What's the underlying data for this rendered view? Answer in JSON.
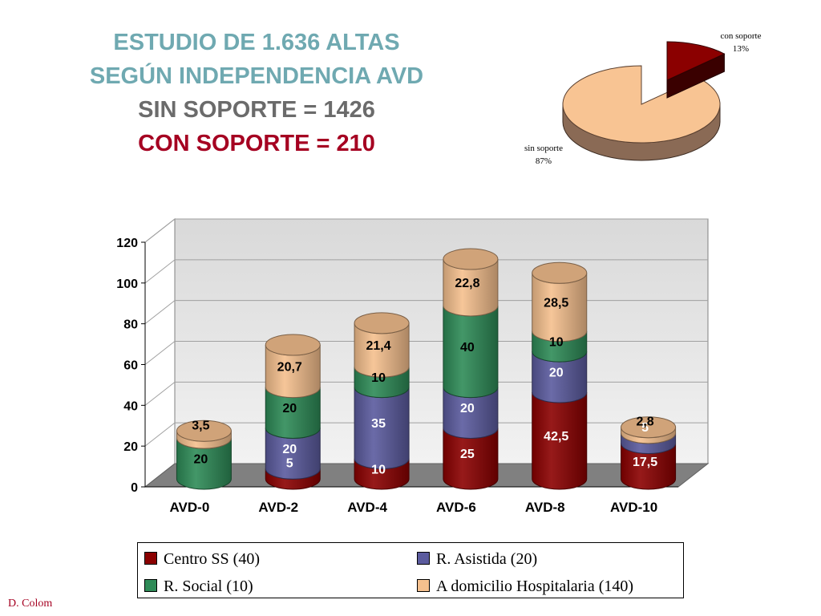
{
  "title": {
    "line1": "ESTUDIO DE 1.636 ALTAS",
    "line2": "SEGÚN INDEPENDENCIA  AVD",
    "line3": "SIN SOPORTE  = 1426",
    "line4": "CON SOPORTE =   210"
  },
  "author": "D. Colom",
  "chart_data": [
    {
      "type": "bar",
      "stacked": true,
      "categories": [
        "AVD-0",
        "AVD-2",
        "AVD-4",
        "AVD-6",
        "AVD-8",
        "AVD-10"
      ],
      "ylim": [
        0,
        120
      ],
      "yticks": [
        0,
        20,
        40,
        60,
        80,
        100,
        120
      ],
      "grid": true,
      "legend_position": "bottom",
      "series": [
        {
          "name": "Centro SS (40)",
          "color": "#8b0000",
          "values": [
            0,
            5,
            10,
            25,
            42.5,
            17.5
          ],
          "labels": [
            "",
            "5",
            "10",
            "25",
            "42,5",
            "17,5"
          ]
        },
        {
          "name": "R. Asistida (20)",
          "color": "#5b5b9e",
          "values": [
            0,
            20,
            35,
            20,
            20,
            5
          ],
          "labels": [
            "",
            "20",
            "35",
            "20",
            "20",
            "5"
          ]
        },
        {
          "name": "R. Social (10)",
          "color": "#2e8b57",
          "values": [
            20,
            20,
            10,
            40,
            10,
            0
          ],
          "labels": [
            "20",
            "20",
            "10",
            "40",
            "10",
            ""
          ]
        },
        {
          "name": "A domicilio Hospitalaria (140)",
          "color": "#f5c08e",
          "values": [
            3.5,
            20.7,
            21.4,
            22.8,
            28.5,
            2.8
          ],
          "labels": [
            "3,5",
            "20,7",
            "21,4",
            "22,8",
            "28,5",
            "2,8"
          ]
        }
      ]
    },
    {
      "type": "pie",
      "slices": [
        {
          "label": "con soporte",
          "percent_label": "13%",
          "value": 13,
          "color": "#8b0000"
        },
        {
          "label": "sin soporte",
          "percent_label": "87%",
          "value": 87,
          "color": "#f8c493"
        }
      ]
    }
  ]
}
